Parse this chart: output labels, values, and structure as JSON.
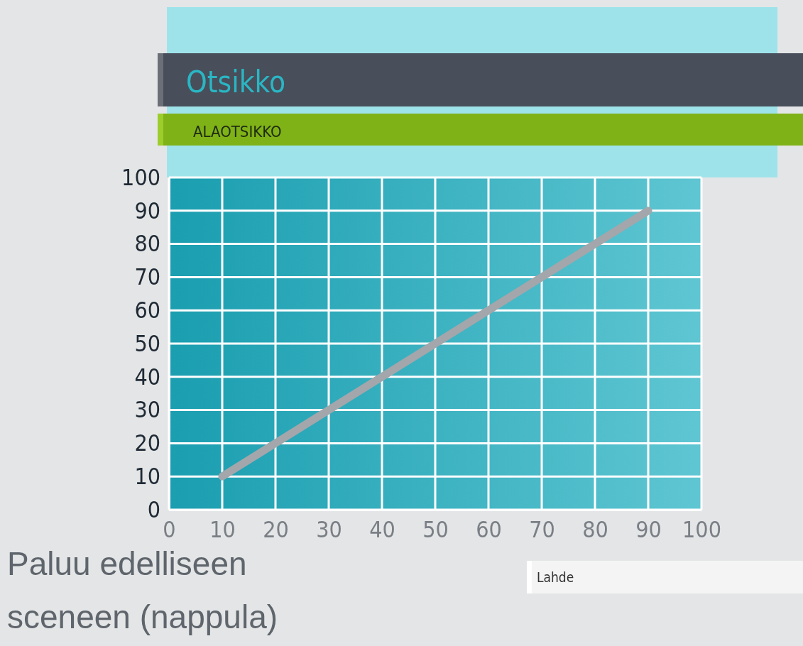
{
  "chart_data": {
    "type": "line",
    "title": "Otsikko",
    "subtitle": "ALAOTSIKKO",
    "x": [
      10,
      90
    ],
    "series": [
      {
        "color": "#a3a6ab",
        "values": [
          10,
          90
        ]
      }
    ],
    "xlim": [
      0,
      100
    ],
    "xticks": [
      0,
      10,
      20,
      30,
      40,
      50,
      60,
      70,
      80,
      90,
      100
    ],
    "ylim": [
      0,
      100
    ],
    "yticks": [
      0,
      10,
      20,
      30,
      40,
      50,
      60,
      70,
      80,
      90,
      100
    ],
    "grid": true,
    "marker": "none",
    "line_style": "solid",
    "annotations": [
      "Lahde",
      "Paluu edelliseen sceneen (nappula)"
    ]
  }
}
